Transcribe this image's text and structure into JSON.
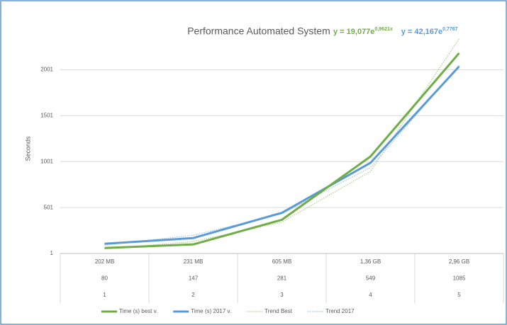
{
  "chart_data": {
    "type": "line",
    "title": "Performance Automated System",
    "annotations": [
      {
        "text": "y = 19,077e",
        "exponent": "0,9621x",
        "color": "#70ad47"
      },
      {
        "text": "y = 42,167e",
        "exponent": "0,7767",
        "color": "#5b9bd5"
      }
    ],
    "y_label": "Seconds",
    "categories": [
      [
        "202 MB",
        "80",
        "1"
      ],
      [
        "231 MB",
        "147",
        "2"
      ],
      [
        "605 MB",
        "281",
        "3"
      ],
      [
        "1,36 GB",
        "549",
        "4"
      ],
      [
        "2,96 GB",
        "1085",
        "5"
      ]
    ],
    "series": [
      {
        "name": "Time (s) best v.",
        "color": "#70ad47",
        "style": "solid",
        "values": [
          61,
          100,
          368,
          1057,
          2183
        ]
      },
      {
        "name": "Time (s) 2017 v.",
        "color": "#5b9bd5",
        "style": "solid",
        "values": [
          107,
          169,
          444,
          988,
          2038
        ]
      },
      {
        "name": "Trend Best",
        "color": "#a9d18e",
        "style": "dotted",
        "values": [
          50,
          131,
          342,
          894,
          2340
        ]
      },
      {
        "name": "Trend 2017",
        "color": "#9dc3e6",
        "style": "dotted",
        "values": [
          92,
          199,
          432,
          938,
          2049
        ]
      }
    ],
    "ylim": [
      1,
      2360
    ],
    "yticks": [
      1,
      501,
      1001,
      1501,
      2001
    ],
    "grid": true,
    "legend": "bottom"
  }
}
